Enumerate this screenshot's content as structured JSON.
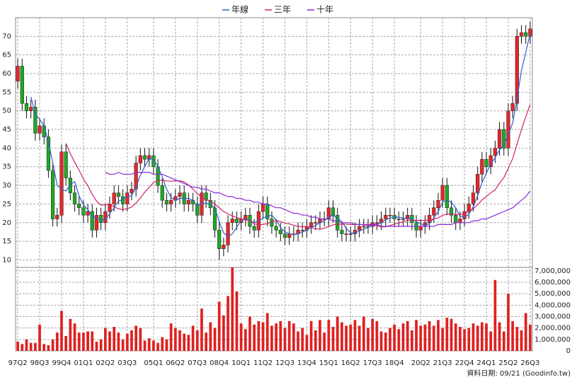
{
  "chart_data": {
    "type": "candlestick",
    "categories": [
      "97Q2",
      null,
      null,
      null,
      null,
      "98Q3",
      null,
      null,
      null,
      null,
      "99Q4",
      null,
      null,
      null,
      null,
      "01Q1",
      null,
      null,
      null,
      null,
      "02Q2",
      null,
      null,
      null,
      null,
      "03Q3",
      null,
      null,
      null,
      null,
      null,
      "05Q1",
      null,
      null,
      null,
      null,
      "06Q2",
      null,
      null,
      null,
      null,
      "07Q3",
      null,
      null,
      null,
      null,
      "08Q4",
      null,
      null,
      null,
      null,
      "10Q1",
      null,
      null,
      null,
      null,
      "11Q2",
      null,
      null,
      null,
      null,
      "12Q3",
      null,
      null,
      null,
      null,
      "13Q4",
      null,
      null,
      null,
      null,
      "15Q1",
      null,
      null,
      null,
      null,
      "16Q2",
      null,
      null,
      null,
      null,
      "17Q3",
      null,
      null,
      null,
      null,
      "18Q4",
      null,
      null,
      null,
      null,
      null,
      "20Q2",
      null,
      null,
      null,
      null,
      "21Q3",
      null,
      null,
      null,
      null,
      "22Q4",
      null,
      null,
      null,
      null,
      "24Q1",
      null,
      null,
      null,
      null,
      "25Q2",
      null,
      null,
      null,
      null,
      "26Q3"
    ],
    "open": [
      58,
      62,
      52,
      50,
      51,
      44,
      46,
      43,
      34,
      21,
      22,
      39,
      32,
      28,
      25,
      24,
      22,
      23,
      18,
      22,
      20,
      23,
      25,
      28,
      27,
      25,
      28,
      29,
      36,
      38,
      37,
      38,
      35,
      30,
      26,
      25,
      26,
      27,
      28,
      25,
      26,
      25,
      22,
      28,
      26,
      24,
      18,
      13,
      14,
      20,
      21,
      20,
      21,
      22,
      19,
      18,
      23,
      25,
      21,
      19,
      18,
      17,
      16,
      17,
      17,
      18,
      18,
      19,
      20,
      20,
      21,
      21,
      24,
      22,
      18,
      17,
      17,
      17,
      18,
      19,
      19,
      19,
      20,
      20,
      21,
      22,
      22,
      21,
      21,
      21,
      22,
      20,
      18,
      19,
      20,
      22,
      24,
      26,
      30,
      24,
      22,
      20,
      21,
      23,
      25,
      28,
      33,
      37,
      35,
      38,
      40,
      45,
      40,
      50,
      52,
      70,
      71,
      70
    ],
    "high": [
      64,
      64,
      54,
      53,
      53,
      48,
      48,
      45,
      36,
      24,
      41,
      41,
      34,
      30,
      27,
      26,
      25,
      25,
      24,
      24,
      25,
      27,
      30,
      30,
      29,
      30,
      31,
      38,
      40,
      40,
      40,
      40,
      37,
      32,
      28,
      28,
      29,
      30,
      30,
      28,
      28,
      27,
      30,
      30,
      28,
      26,
      20,
      16,
      22,
      23,
      23,
      23,
      24,
      24,
      21,
      25,
      27,
      27,
      23,
      21,
      20,
      19,
      19,
      19,
      20,
      20,
      21,
      22,
      22,
      23,
      23,
      26,
      26,
      24,
      20,
      19,
      19,
      20,
      21,
      21,
      21,
      22,
      22,
      23,
      24,
      24,
      24,
      23,
      23,
      24,
      24,
      22,
      21,
      22,
      24,
      26,
      28,
      32,
      32,
      26,
      24,
      23,
      25,
      27,
      30,
      35,
      39,
      39,
      40,
      42,
      47,
      47,
      52,
      54,
      72,
      73,
      73,
      74
    ],
    "low": [
      56,
      50,
      48,
      48,
      42,
      42,
      41,
      32,
      19,
      19,
      20,
      30,
      26,
      23,
      22,
      20,
      20,
      16,
      16,
      18,
      18,
      21,
      23,
      25,
      23,
      23,
      26,
      27,
      34,
      35,
      35,
      33,
      28,
      24,
      23,
      23,
      24,
      25,
      23,
      23,
      23,
      20,
      20,
      24,
      22,
      16,
      10,
      11,
      12,
      18,
      18,
      18,
      19,
      17,
      16,
      16,
      21,
      19,
      17,
      16,
      15,
      14,
      14,
      15,
      15,
      16,
      16,
      17,
      18,
      18,
      19,
      19,
      20,
      16,
      15,
      15,
      15,
      15,
      16,
      17,
      17,
      17,
      18,
      18,
      19,
      20,
      19,
      19,
      19,
      19,
      18,
      16,
      16,
      17,
      18,
      20,
      22,
      24,
      22,
      20,
      18,
      18,
      19,
      21,
      23,
      26,
      31,
      33,
      33,
      36,
      38,
      38,
      38,
      48,
      50,
      68,
      68,
      68
    ],
    "close": [
      62,
      52,
      50,
      51,
      44,
      46,
      43,
      34,
      21,
      22,
      39,
      32,
      28,
      25,
      24,
      22,
      23,
      18,
      22,
      20,
      23,
      25,
      28,
      27,
      25,
      28,
      29,
      36,
      38,
      37,
      38,
      35,
      30,
      26,
      25,
      26,
      27,
      28,
      25,
      26,
      25,
      22,
      28,
      26,
      24,
      18,
      13,
      14,
      20,
      21,
      20,
      21,
      22,
      19,
      18,
      23,
      25,
      21,
      19,
      18,
      17,
      16,
      17,
      17,
      18,
      18,
      19,
      20,
      20,
      21,
      21,
      24,
      22,
      18,
      17,
      17,
      17,
      18,
      19,
      19,
      19,
      20,
      20,
      21,
      22,
      22,
      21,
      21,
      21,
      22,
      20,
      18,
      19,
      20,
      22,
      24,
      26,
      30,
      24,
      22,
      20,
      21,
      23,
      25,
      28,
      33,
      37,
      35,
      38,
      40,
      45,
      40,
      50,
      52,
      70,
      71,
      70,
      72
    ],
    "up_color": "#e8262a",
    "down_color": "#1fa824",
    "ylim": [
      8,
      75
    ],
    "yticks": [
      10,
      15,
      20,
      25,
      30,
      35,
      40,
      45,
      50,
      55,
      60,
      65,
      70
    ],
    "grid": true,
    "lines": [
      {
        "name": "年線",
        "color": "#2f5fd0",
        "values": [
          null,
          null,
          null,
          53.75,
          49.25,
          47.75,
          46,
          41.75,
          36,
          30,
          29,
          28.5,
          30.25,
          31,
          27.25,
          24.75,
          23.5,
          21.75,
          21.25,
          20.75,
          20.75,
          22.5,
          24,
          25.75,
          26.25,
          27,
          27.25,
          29.5,
          32.75,
          35,
          37.25,
          37,
          35,
          32.25,
          29,
          26.75,
          26,
          26.5,
          26.5,
          26.5,
          26,
          24.5,
          25.25,
          25.25,
          25,
          24,
          20.25,
          17.25,
          16.25,
          17,
          18.75,
          20.5,
          21,
          20.5,
          20,
          20.5,
          21.25,
          21.75,
          22,
          20.75,
          18.75,
          17.5,
          17,
          16.75,
          17,
          17.5,
          18,
          18.75,
          19.25,
          20,
          20.5,
          21.5,
          22,
          21.25,
          20.25,
          18.5,
          17.25,
          17.25,
          17.75,
          18.25,
          18.75,
          19.25,
          19.5,
          20,
          20.75,
          21.25,
          21.5,
          21.5,
          21.25,
          21.25,
          21,
          20.25,
          19.75,
          19.25,
          19.75,
          21.25,
          23,
          25.5,
          26,
          25.5,
          24,
          21.75,
          21.5,
          22.25,
          24.25,
          27.25,
          30.75,
          33.25,
          35.75,
          37.5,
          39.5,
          40.75,
          43.75,
          46.75,
          53,
          60.75,
          65.75,
          70.75
        ]
      },
      {
        "name": "三年",
        "color": "#d0246a",
        "values": [
          null,
          null,
          null,
          null,
          null,
          null,
          null,
          null,
          null,
          null,
          null,
          41.3,
          38.5,
          36.25,
          34.1,
          31.7,
          29.9,
          27.6,
          25.8,
          24.7,
          24.8,
          25.1,
          24.2,
          23.75,
          23.5,
          23.75,
          24.2,
          25.3,
          26.6,
          28.2,
          29.5,
          30.75,
          31.3,
          31.4,
          31.2,
          31.1,
          31.25,
          31.25,
          30.9,
          30.1,
          29,
          27.75,
          26.9,
          26.2,
          25.7,
          25,
          24,
          23,
          22.4,
          21.8,
          21.4,
          21,
          20.75,
          20.5,
          19.7,
          19.4,
          19.5,
          19.75,
          20.25,
          20.6,
          20.3,
          19.9,
          19.7,
          19.3,
          19,
          18.9,
          19,
          18.75,
          18.3,
          18.3,
          18.5,
          19,
          19.4,
          19.6,
          19.6,
          19.6,
          19.5,
          19.5,
          19.5,
          19.4,
          19.3,
          19.25,
          19.2,
          18.9,
          18.9,
          19.25,
          19.6,
          19.9,
          20.25,
          20.6,
          20.7,
          20.6,
          20.6,
          20.6,
          20.75,
          21,
          21.3,
          22,
          22.25,
          22.3,
          22.25,
          22.2,
          22.4,
          23,
          23.75,
          24.8,
          26.1,
          27,
          28,
          28.8,
          30.6,
          32.1,
          34.6,
          37.2,
          41.1,
          44.9,
          48.4,
          51.7
        ]
      },
      {
        "name": "十年",
        "color": "#8a2bd6",
        "values": [
          null,
          null,
          null,
          null,
          null,
          null,
          null,
          null,
          null,
          null,
          null,
          null,
          null,
          null,
          null,
          null,
          null,
          null,
          null,
          null,
          33.5,
          33,
          33,
          33.5,
          33,
          33,
          33,
          33.5,
          33.5,
          33.5,
          33.5,
          33,
          33,
          33,
          32.5,
          32,
          31.5,
          31,
          30.5,
          30,
          29.5,
          29.5,
          29,
          29,
          28.5,
          28,
          28,
          27.5,
          27,
          27,
          26.5,
          26.5,
          26,
          26,
          25.5,
          25.5,
          25,
          25,
          24.5,
          24,
          24,
          23.5,
          23,
          22.5,
          22.5,
          22,
          22,
          21.5,
          21.5,
          21,
          21,
          21,
          20.5,
          20.5,
          20,
          20,
          20,
          19.5,
          19.5,
          19.5,
          19.5,
          19.5,
          19.5,
          19,
          19,
          19,
          19,
          19,
          19,
          19,
          19,
          19,
          19,
          19,
          19,
          19,
          19.5,
          19.5,
          19.5,
          19.5,
          20,
          20,
          20,
          20,
          20.5,
          20.5,
          21,
          21,
          21.5,
          22,
          22.5,
          23,
          23.5,
          24,
          25,
          26,
          27,
          28.5
        ]
      }
    ],
    "volume": {
      "color": "#e02020",
      "ylim": [
        0,
        7300000
      ],
      "yticks": [
        0,
        {
          "value": 1000000,
          "label": "1,000,000"
        },
        {
          "value": 2000000,
          "label": "2,000,000"
        },
        {
          "value": 3000000,
          "label": "3,000,000"
        },
        {
          "value": 4000000,
          "label": "4,000,000"
        },
        {
          "value": 5000000,
          "label": "5,000,000"
        },
        {
          "value": 6000000,
          "label": "6,000,000"
        },
        {
          "value": 7000000,
          "label": "7,000,000"
        }
      ],
      "values": [
        800000,
        600000,
        1000000,
        700000,
        700000,
        2300000,
        600000,
        500000,
        1000000,
        1600000,
        3500000,
        1300000,
        2800000,
        2400000,
        1600000,
        1600000,
        1700000,
        1700000,
        800000,
        1000000,
        2000000,
        1700000,
        2100000,
        1600000,
        1000000,
        1500000,
        1800000,
        2200000,
        2000000,
        900000,
        1100000,
        900000,
        700000,
        1200000,
        1000000,
        2400000,
        2000000,
        1800000,
        1500000,
        1400000,
        2200000,
        1800000,
        3700000,
        1600000,
        2500000,
        2000000,
        4300000,
        3100000,
        4800000,
        7300000,
        5200000,
        2400000,
        1900000,
        3000000,
        2300000,
        2600000,
        2500000,
        3300000,
        2200000,
        2400000,
        2600000,
        2000000,
        2600000,
        2400000,
        1700000,
        2000000,
        1400000,
        2600000,
        1800000,
        2700000,
        1600000,
        2700000,
        2100000,
        3000000,
        2500000,
        2200000,
        2300000,
        2700000,
        2200000,
        3000000,
        2000000,
        2800000,
        2600000,
        1700000,
        1600000,
        2000000,
        2300000,
        1900000,
        2400000,
        2600000,
        1800000,
        2700000,
        2200000,
        2300000,
        2600000,
        2200000,
        2700000,
        2000000,
        2900000,
        2800000,
        2400000,
        2100000,
        1900000,
        2000000,
        2400000,
        2200000,
        2500000,
        2400000,
        1700000,
        6200000,
        2500000,
        1700000,
        5000000,
        2600000,
        2100000,
        1800000,
        3300000,
        2300000
      ]
    },
    "footer": "資料日期: 09/21 (Goodinfo.tw)"
  }
}
